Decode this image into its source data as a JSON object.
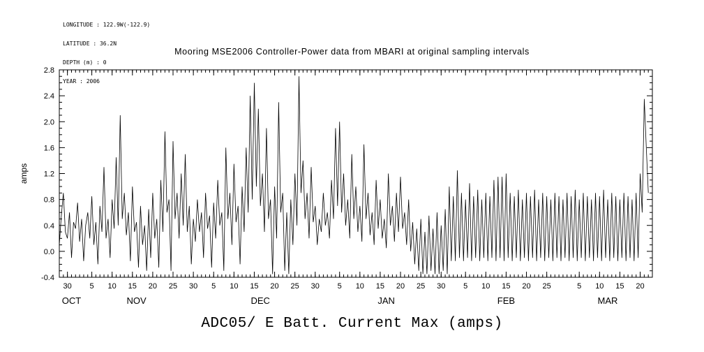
{
  "meta": {
    "longitude": "LONGITUDE : 122.9W(-122.9)",
    "latitude": "LATITUDE : 36.2N",
    "depth": "DEPTH (m) : 0",
    "year": "YEAR : 2006"
  },
  "title": "Mooring MSE2006 Controller-Power data from MBARI at original sampling intervals",
  "bottom_title": "ADC05/ E Batt. Current Max (amps)",
  "chart_data": {
    "type": "line",
    "title": "Mooring MSE2006 Controller-Power data from MBARI at original sampling intervals",
    "xlabel": "",
    "ylabel": "amps",
    "ylim": [
      -0.4,
      2.8
    ],
    "y_ticks": [
      -0.4,
      0.0,
      0.4,
      0.8,
      1.2,
      1.6,
      2.0,
      2.4,
      2.8
    ],
    "xlim_days": [
      0,
      146
    ],
    "x_origin": "Oct 28",
    "x_step_days": 0.5,
    "x_ticks": [
      {
        "label": "30",
        "day": 2
      },
      {
        "label": "5",
        "day": 8
      },
      {
        "label": "10",
        "day": 13
      },
      {
        "label": "15",
        "day": 18
      },
      {
        "label": "20",
        "day": 23
      },
      {
        "label": "25",
        "day": 28
      },
      {
        "label": "30",
        "day": 33
      },
      {
        "label": "5",
        "day": 38
      },
      {
        "label": "10",
        "day": 43
      },
      {
        "label": "15",
        "day": 48
      },
      {
        "label": "20",
        "day": 53
      },
      {
        "label": "25",
        "day": 58
      },
      {
        "label": "30",
        "day": 63
      },
      {
        "label": "5",
        "day": 69
      },
      {
        "label": "10",
        "day": 74
      },
      {
        "label": "15",
        "day": 79
      },
      {
        "label": "20",
        "day": 84
      },
      {
        "label": "25",
        "day": 89
      },
      {
        "label": "30",
        "day": 94
      },
      {
        "label": "5",
        "day": 100
      },
      {
        "label": "10",
        "day": 105
      },
      {
        "label": "15",
        "day": 110
      },
      {
        "label": "20",
        "day": 115
      },
      {
        "label": "25",
        "day": 120
      },
      {
        "label": "5",
        "day": 128
      },
      {
        "label": "10",
        "day": 133
      },
      {
        "label": "15",
        "day": 138
      },
      {
        "label": "20",
        "day": 143
      }
    ],
    "month_labels": [
      {
        "label": "OCT",
        "day": 3
      },
      {
        "label": "NOV",
        "day": 19
      },
      {
        "label": "DEC",
        "day": 49.5
      },
      {
        "label": "JAN",
        "day": 80.5
      },
      {
        "label": "FEB",
        "day": 110
      },
      {
        "label": "MAR",
        "day": 135
      }
    ],
    "line_color": "#000000",
    "values": [
      0.1,
      0.55,
      0.9,
      0.3,
      0.2,
      0.6,
      -0.1,
      0.45,
      0.35,
      0.75,
      0.15,
      0.5,
      -0.15,
      0.4,
      0.6,
      0.2,
      0.85,
      0.1,
      0.45,
      -0.2,
      0.7,
      0.3,
      1.3,
      0.2,
      0.5,
      -0.1,
      0.8,
      0.35,
      1.45,
      0.4,
      2.1,
      0.5,
      0.9,
      0.25,
      0.6,
      -0.15,
      1.0,
      0.3,
      0.45,
      -0.25,
      0.7,
      0.1,
      0.4,
      -0.3,
      0.65,
      -0.1,
      0.9,
      0.2,
      0.5,
      -0.25,
      1.1,
      0.3,
      1.85,
      0.6,
      0.8,
      -0.3,
      1.7,
      0.5,
      0.9,
      0.2,
      1.2,
      0.4,
      1.5,
      0.3,
      0.7,
      -0.2,
      0.5,
      0.15,
      0.8,
      0.3,
      0.6,
      -0.1,
      0.9,
      0.35,
      0.55,
      -0.25,
      0.75,
      0.2,
      1.1,
      0.4,
      0.6,
      -0.3,
      1.6,
      0.5,
      0.9,
      0.1,
      1.35,
      0.45,
      0.7,
      -0.2,
      1.0,
      0.3,
      1.6,
      0.6,
      2.4,
      0.8,
      2.6,
      1.0,
      2.2,
      0.7,
      1.2,
      0.3,
      1.9,
      0.5,
      0.8,
      -0.35,
      1.0,
      0.2,
      2.3,
      0.6,
      0.9,
      -0.3,
      0.6,
      -0.35,
      0.8,
      0.1,
      1.2,
      0.4,
      2.7,
      0.9,
      1.4,
      0.5,
      0.9,
      0.2,
      1.3,
      0.45,
      0.7,
      0.1,
      0.5,
      0.3,
      0.9,
      0.4,
      0.6,
      0.2,
      1.1,
      0.5,
      1.9,
      0.7,
      2.0,
      0.6,
      1.2,
      0.4,
      0.8,
      0.2,
      1.5,
      0.5,
      1.0,
      0.3,
      0.7,
      0.15,
      1.65,
      0.5,
      0.9,
      0.25,
      0.6,
      0.1,
      1.1,
      0.35,
      0.8,
      0.2,
      0.5,
      0.05,
      1.2,
      0.4,
      0.7,
      0.15,
      0.9,
      0.3,
      1.15,
      0.35,
      0.6,
      0.1,
      0.8,
      0.0,
      0.45,
      -0.2,
      0.35,
      -0.3,
      0.5,
      -0.35,
      0.3,
      -0.35,
      0.55,
      -0.3,
      0.35,
      -0.35,
      0.6,
      -0.35,
      0.4,
      -0.3,
      0.65,
      -0.35,
      1.0,
      -0.15,
      0.85,
      -0.15,
      1.25,
      -0.1,
      0.9,
      -0.15,
      0.8,
      -0.1,
      1.05,
      -0.15,
      0.85,
      -0.1,
      0.95,
      -0.15,
      0.8,
      -0.1,
      0.9,
      -0.15,
      0.85,
      -0.1,
      1.1,
      -0.15,
      1.15,
      -0.1,
      1.15,
      -0.15,
      1.2,
      -0.1,
      0.9,
      -0.15,
      0.85,
      -0.1,
      0.95,
      -0.15,
      0.8,
      -0.1,
      0.9,
      -0.15,
      0.85,
      -0.1,
      0.95,
      -0.15,
      0.8,
      -0.1,
      0.9,
      -0.15,
      0.85,
      -0.1,
      0.8,
      -0.15,
      0.9,
      -0.1,
      0.85,
      -0.15,
      0.8,
      -0.1,
      0.9,
      -0.15,
      0.85,
      -0.1,
      0.95,
      -0.15,
      0.8,
      -0.1,
      0.9,
      -0.15,
      0.85,
      -0.1,
      0.8,
      -0.15,
      0.9,
      -0.1,
      0.85,
      -0.15,
      0.95,
      -0.1,
      0.8,
      -0.15,
      0.9,
      -0.1,
      0.85,
      -0.15,
      0.8,
      -0.1,
      0.9,
      -0.15,
      0.85,
      -0.1,
      0.8,
      -0.15,
      0.9,
      -0.1,
      1.2,
      0.6,
      2.35,
      1.6,
      0.9
    ]
  }
}
